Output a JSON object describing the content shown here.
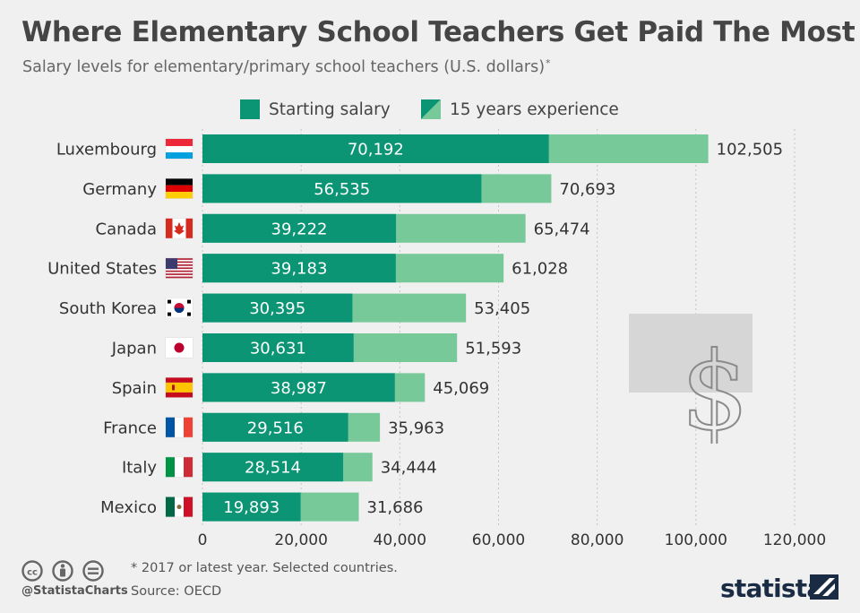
{
  "title": "Where Elementary School Teachers Get Paid The Most",
  "subtitle": "Salary levels for elementary/primary school teachers (U.S. dollars)",
  "subtitle_marker": "*",
  "footnote": "* 2017 or latest year. Selected countries.",
  "source": "Source: OECD",
  "handle": "@StatistaCharts",
  "brand": "statista",
  "colors": {
    "starting": "#0b9575",
    "experience": "#78c99a",
    "background": "#f0f0f0"
  },
  "chart_data": {
    "type": "bar",
    "orientation": "horizontal",
    "stacked_overlay": true,
    "categories": [
      "Luxembourg",
      "Germany",
      "Canada",
      "United States",
      "South Korea",
      "Japan",
      "Spain",
      "France",
      "Italy",
      "Mexico"
    ],
    "series": [
      {
        "name": "Starting salary",
        "values": [
          70192,
          56535,
          39222,
          39183,
          30395,
          30631,
          38987,
          29516,
          28514,
          19893
        ]
      },
      {
        "name": "15 years experience",
        "values": [
          102505,
          70693,
          65474,
          61028,
          53405,
          51593,
          45069,
          35963,
          34444,
          31686
        ]
      }
    ],
    "starting_labels": [
      "70,192",
      "56,535",
      "39,222",
      "39,183",
      "30,395",
      "30,631",
      "38,987",
      "29,516",
      "28,514",
      "19,893"
    ],
    "experience_labels": [
      "102,505",
      "70,693",
      "65,474",
      "61,028",
      "53,405",
      "51,593",
      "45,069",
      "35,963",
      "34,444",
      "31,686"
    ],
    "flags": [
      "flag-luxembourg",
      "flag-germany",
      "flag-canada",
      "flag-united-states",
      "flag-south-korea",
      "flag-japan",
      "flag-spain",
      "flag-france",
      "flag-italy",
      "flag-mexico"
    ],
    "xlim": [
      0,
      120000
    ],
    "xticks": [
      0,
      20000,
      40000,
      60000,
      80000,
      100000,
      120000
    ],
    "xtick_labels": [
      "0",
      "20,000",
      "40,000",
      "60,000",
      "80,000",
      "100,000",
      "120,000"
    ],
    "grid": true,
    "legend_position": "top"
  }
}
